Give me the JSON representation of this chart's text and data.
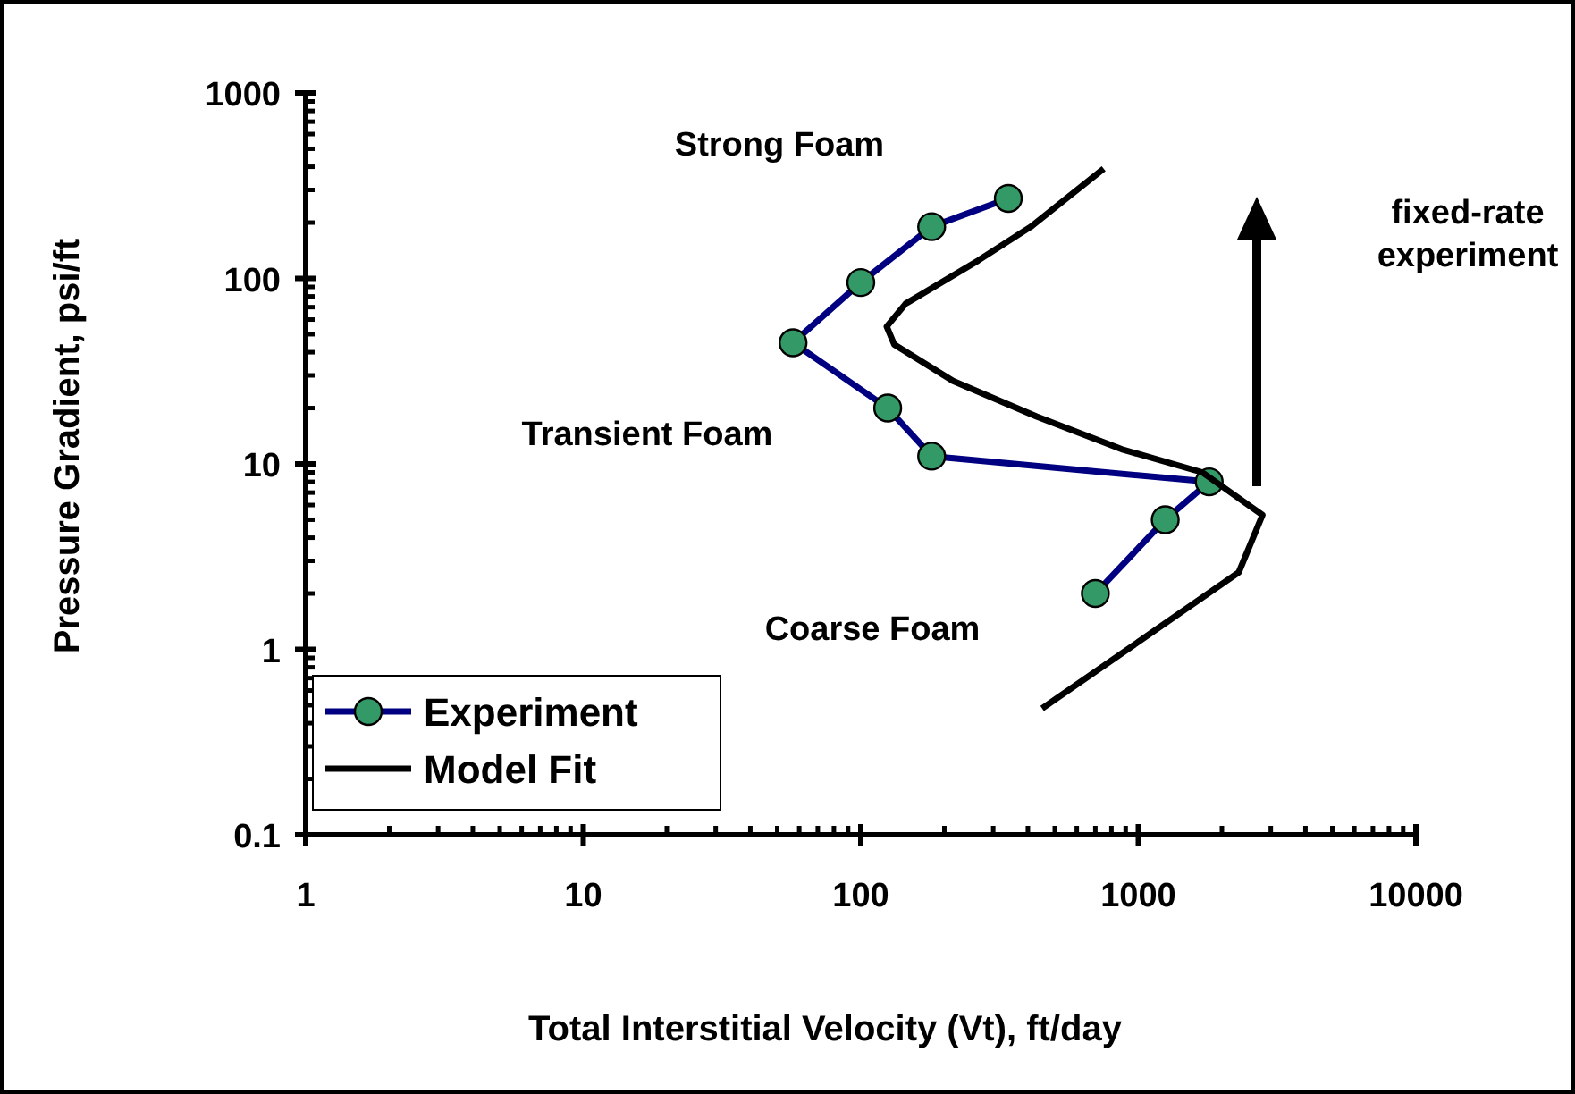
{
  "chart_data": {
    "type": "line",
    "xlabel": "Total Interstitial Velocity (Vt), ft/day",
    "ylabel": "Pressure Gradient, psi/ft",
    "log": "xy",
    "grid": false,
    "legend": "bottom left",
    "xlim": [
      1,
      10000
    ],
    "ylim": [
      0.1,
      1000
    ],
    "xticks": [
      1,
      {
        "value": 2,
        "label": null
      },
      {
        "value": 3,
        "label": null
      },
      {
        "value": 4,
        "label": null
      },
      {
        "value": 5,
        "label": null
      },
      {
        "value": 6,
        "label": null
      },
      {
        "value": 7,
        "label": null
      },
      {
        "value": 8,
        "label": null
      },
      {
        "value": 9,
        "label": null
      },
      10,
      {
        "value": 20,
        "label": null
      },
      {
        "value": 30,
        "label": null
      },
      {
        "value": 40,
        "label": null
      },
      {
        "value": 50,
        "label": null
      },
      {
        "value": 60,
        "label": null
      },
      {
        "value": 70,
        "label": null
      },
      {
        "value": 80,
        "label": null
      },
      {
        "value": 90,
        "label": null
      },
      100,
      {
        "value": 200,
        "label": null
      },
      {
        "value": 300,
        "label": null
      },
      {
        "value": 400,
        "label": null
      },
      {
        "value": 500,
        "label": null
      },
      {
        "value": 600,
        "label": null
      },
      {
        "value": 700,
        "label": null
      },
      {
        "value": 800,
        "label": null
      },
      {
        "value": 900,
        "label": null
      },
      1000,
      {
        "value": 2000,
        "label": null
      },
      {
        "value": 3000,
        "label": null
      },
      {
        "value": 4000,
        "label": null
      },
      {
        "value": 5000,
        "label": null
      },
      {
        "value": 6000,
        "label": null
      },
      {
        "value": 7000,
        "label": null
      },
      {
        "value": 8000,
        "label": null
      },
      {
        "value": 9000,
        "label": null
      },
      10000
    ],
    "yticks": [
      0.1,
      {
        "value": 0.2,
        "label": null
      },
      {
        "value": 0.3,
        "label": null
      },
      {
        "value": 0.4,
        "label": null
      },
      {
        "value": 0.5,
        "label": null
      },
      {
        "value": 0.6,
        "label": null
      },
      {
        "value": 0.7,
        "label": null
      },
      {
        "value": 0.8,
        "label": null
      },
      {
        "value": 0.9,
        "label": null
      },
      1,
      {
        "value": 2,
        "label": null
      },
      {
        "value": 3,
        "label": null
      },
      {
        "value": 4,
        "label": null
      },
      {
        "value": 5,
        "label": null
      },
      {
        "value": 6,
        "label": null
      },
      {
        "value": 7,
        "label": null
      },
      {
        "value": 8,
        "label": null
      },
      {
        "value": 9,
        "label": null
      },
      10,
      {
        "value": 20,
        "label": null
      },
      {
        "value": 30,
        "label": null
      },
      {
        "value": 40,
        "label": null
      },
      {
        "value": 50,
        "label": null
      },
      {
        "value": 60,
        "label": null
      },
      {
        "value": 70,
        "label": null
      },
      {
        "value": 80,
        "label": null
      },
      {
        "value": 90,
        "label": null
      },
      100,
      {
        "value": 200,
        "label": null
      },
      {
        "value": 300,
        "label": null
      },
      {
        "value": 400,
        "label": null
      },
      {
        "value": 500,
        "label": null
      },
      {
        "value": 600,
        "label": null
      },
      {
        "value": 700,
        "label": null
      },
      {
        "value": 800,
        "label": null
      },
      {
        "value": 900,
        "label": null
      },
      1000
    ],
    "series": [
      {
        "name": "Experiment",
        "color": "#000080",
        "marker": "circle",
        "x": [
          340,
          180,
          100,
          57,
          125,
          180,
          1800,
          1250,
          700
        ],
        "values": [
          270,
          190,
          95,
          45,
          20,
          11,
          8,
          5,
          2
        ]
      },
      {
        "name": "Model Fit",
        "color": "#000000",
        "marker": "none",
        "x": [
          750,
          410,
          265,
          145,
          124,
          132,
          215,
          430,
          870,
          1700,
          2800,
          2300,
          450
        ],
        "values": [
          390,
          190,
          125,
          73,
          55,
          44,
          28,
          18,
          12,
          9,
          5.3,
          2.6,
          0.48
        ]
      }
    ],
    "annotations": [
      "Strong Foam",
      "Transient Foam",
      "Coarse Foam",
      "fixed-rate experiment"
    ]
  }
}
